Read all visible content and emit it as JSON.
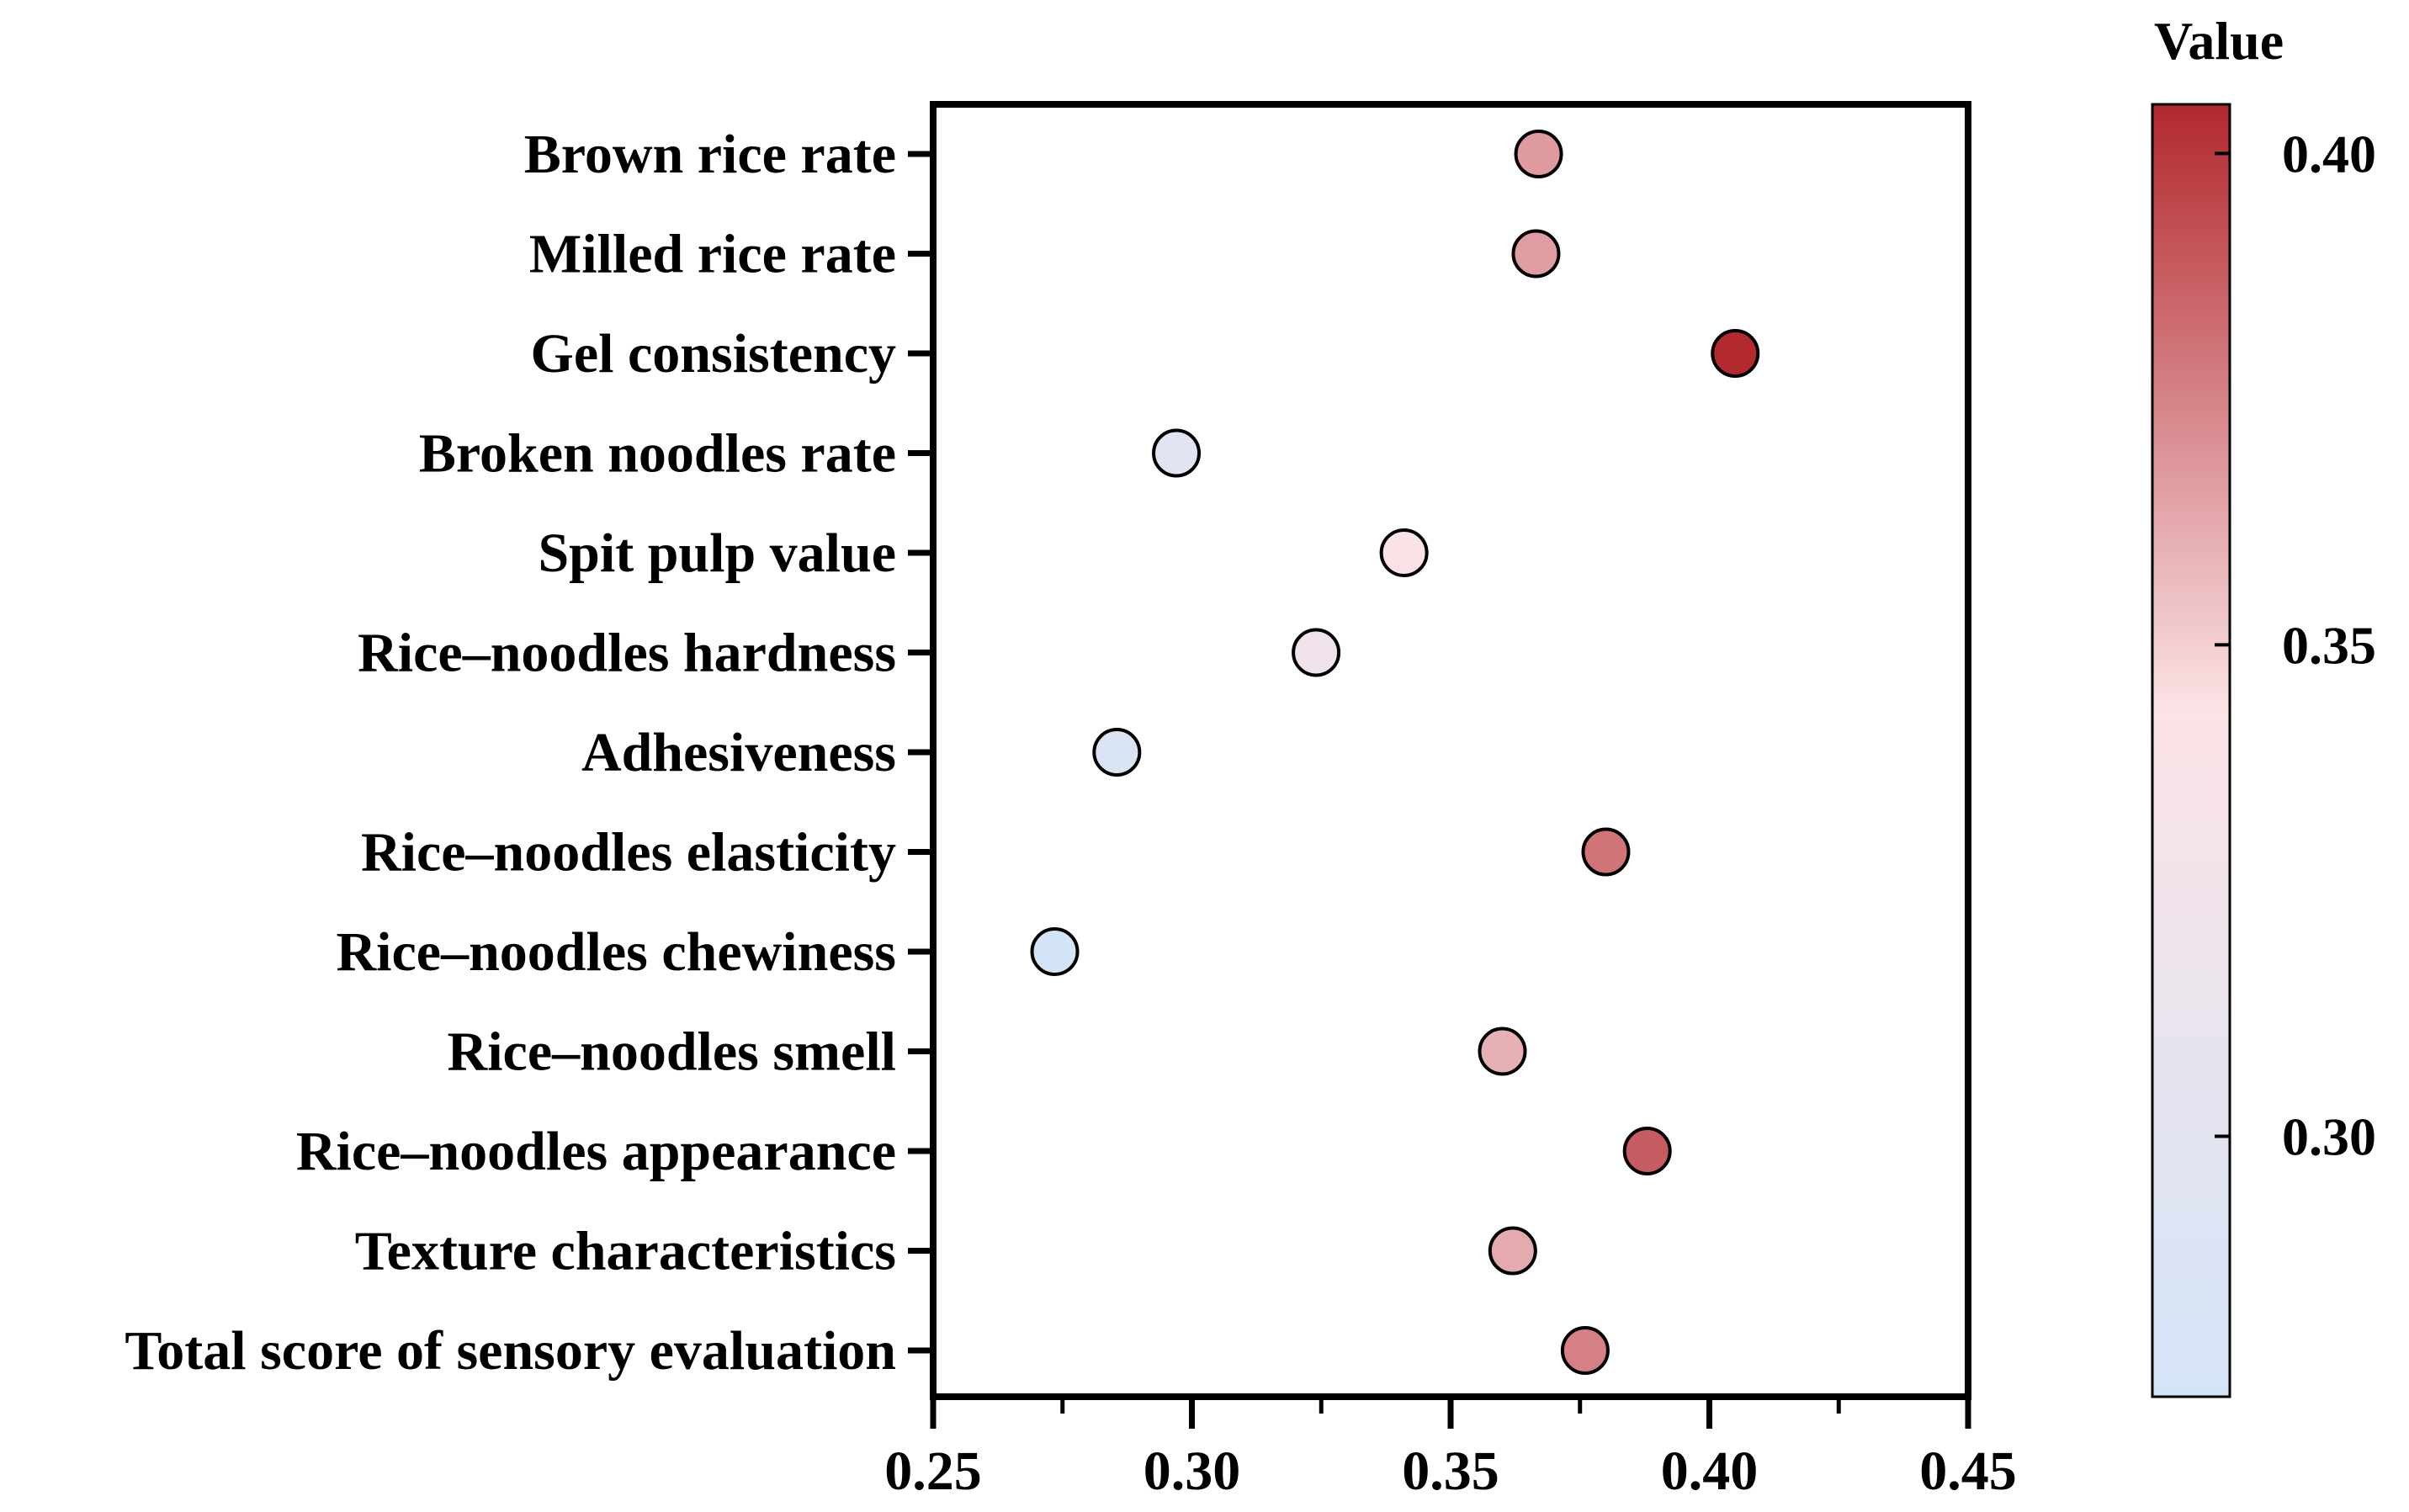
{
  "chart_data": {
    "type": "scatter",
    "title": "",
    "xlabel": "",
    "ylabel": "",
    "xlim": [
      0.25,
      0.45
    ],
    "x_ticks": [
      "0.25",
      "0.30",
      "0.35",
      "0.40",
      "0.45"
    ],
    "categories": [
      "Brown rice rate",
      "Milled rice rate",
      "Gel consistency",
      "Broken noodles rate",
      "Spit pulp value",
      "Rice–noodles hardness",
      "Adhesiveness",
      "Rice–noodles elasticity",
      "Rice–noodles chewiness",
      "Rice–noodles smell",
      "Rice–noodles appearance",
      "Texture characteristics",
      "Total score of sensory evaluation"
    ],
    "values": [
      0.367,
      0.3665,
      0.405,
      0.297,
      0.341,
      0.324,
      0.2855,
      0.38,
      0.2735,
      0.36,
      0.388,
      0.362,
      0.376
    ],
    "colorbar": {
      "title": "Value",
      "range": [
        0.2735,
        0.405
      ],
      "ticks": [
        "0.30",
        "0.35",
        "0.40"
      ],
      "colors": [
        "#d4e4f7",
        "#fbe3e6",
        "#b2292e"
      ]
    }
  }
}
